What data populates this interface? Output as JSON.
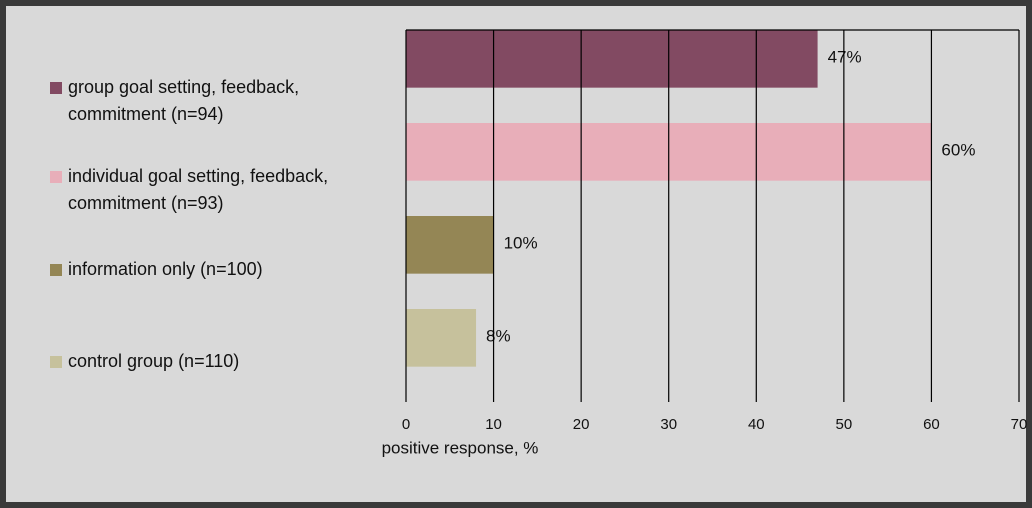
{
  "chart_data": {
    "type": "barh",
    "categories": [
      "group goal setting, feedback, commitment (n=94)",
      "individual goal setting, feedback, commitment (n=93)",
      "information only (n=100)",
      "control group (n=110)"
    ],
    "values": [
      47,
      60,
      10,
      8
    ],
    "value_labels": [
      "47%",
      "60%",
      "10%",
      "8%"
    ],
    "colors": [
      "#824a62",
      "#e8aeb9",
      "#948655",
      "#c6c19c"
    ],
    "xlabel": "positive response, %",
    "xlim": [
      0,
      70
    ],
    "xticks": [
      0,
      10,
      20,
      30,
      40,
      50,
      60,
      70
    ],
    "grid": true,
    "legend": "left"
  }
}
